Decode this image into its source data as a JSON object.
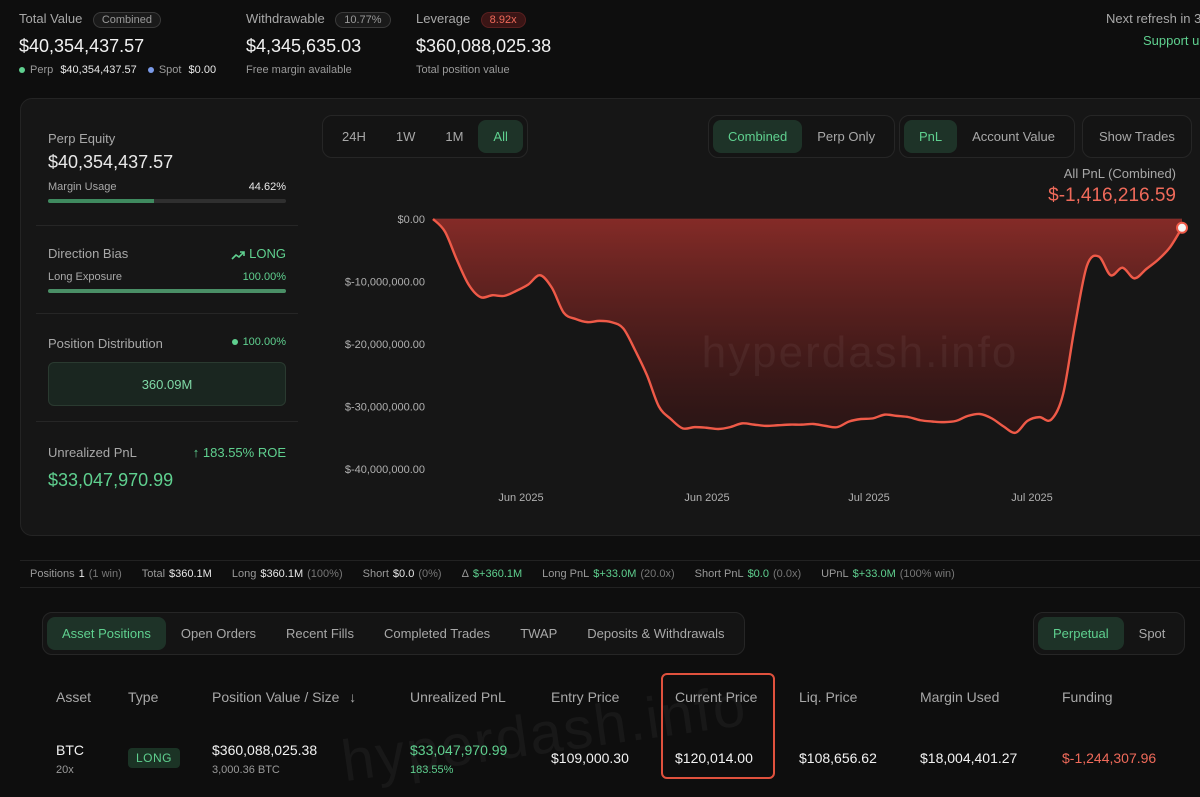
{
  "summary": {
    "total_value": {
      "label": "Total Value",
      "badge": "Combined",
      "value": "$40,354,437.57",
      "perp_label": "Perp",
      "perp_value": "$40,354,437.57",
      "spot_label": "Spot",
      "spot_value": "$0.00"
    },
    "withdrawable": {
      "label": "Withdrawable",
      "badge": "10.77%",
      "value": "$4,345,635.03",
      "sub": "Free margin available"
    },
    "leverage": {
      "label": "Leverage",
      "badge": "8.92x",
      "value": "$360,088,025.38",
      "sub": "Total position value"
    },
    "refresh": "Next refresh in 3",
    "support": "Support u"
  },
  "side": {
    "perp_equity": {
      "label": "Perp Equity",
      "value": "$40,354,437.57",
      "margin_label": "Margin Usage",
      "margin_value": "44.62%",
      "margin_fraction": 0.4462
    },
    "direction": {
      "label": "Direction Bias",
      "value": "LONG",
      "exposure_label": "Long Exposure",
      "exposure_value": "100.00%",
      "exposure_fraction": 1.0
    },
    "distribution": {
      "label": "Position Distribution",
      "value": "100.00%",
      "box_value": "360.09M"
    },
    "unrealized": {
      "label": "Unrealized PnL",
      "roe": "183.55% ROE",
      "value": "$33,047,970.99"
    }
  },
  "controls": {
    "ranges": [
      "24H",
      "1W",
      "1M",
      "All"
    ],
    "scope": [
      "Combined",
      "Perp Only"
    ],
    "metric": [
      "PnL",
      "Account Value"
    ],
    "show_trades": "Show Trades"
  },
  "chart_head": {
    "label": "All PnL (Combined)",
    "value": "$-1,416,216.59"
  },
  "watermark": "hyperdash.info",
  "chart_data": {
    "type": "area",
    "y_ticks": [
      "$0.00",
      "$-10,000,000.00",
      "$-20,000,000.00",
      "$-30,000,000.00",
      "$-40,000,000.00"
    ],
    "x_ticks": [
      "Jun 2025",
      "Jun 2025",
      "Jul 2025",
      "Jul 2025"
    ],
    "ylim": [
      -40000000,
      0
    ],
    "series_color": "#ef5a48",
    "values": [
      0,
      -2000000,
      -6500000,
      -10500000,
      -12500000,
      -12200000,
      -12300000,
      -11500000,
      -10500000,
      -9000000,
      -11000000,
      -15000000,
      -16000000,
      -16500000,
      -16300000,
      -16500000,
      -17500000,
      -21000000,
      -25000000,
      -30000000,
      -32000000,
      -33500000,
      -33300000,
      -33400000,
      -33600000,
      -33300000,
      -32700000,
      -32900000,
      -33100000,
      -33000000,
      -32900000,
      -32900000,
      -32800000,
      -33100000,
      -33300000,
      -32400000,
      -32000000,
      -31900000,
      -31300000,
      -31500000,
      -31700000,
      -32200000,
      -32400000,
      -32500000,
      -32300000,
      -31500000,
      -31200000,
      -31900000,
      -33200000,
      -34200000,
      -32300000,
      -31700000,
      -32100000,
      -28000000,
      -17000000,
      -7500000,
      -6000000,
      -9000000,
      -7800000,
      -9500000,
      -8000000,
      -6500000,
      -4500000,
      -1400000
    ]
  },
  "stats": {
    "positions_label": "Positions",
    "positions_value": "1",
    "positions_win": "(1 win)",
    "total_label": "Total",
    "total_value": "$360.1M",
    "long_label": "Long",
    "long_value": "$360.1M",
    "long_pct": "(100%)",
    "short_label": "Short",
    "short_value": "$0.0",
    "short_pct": "(0%)",
    "delta_label": "Δ",
    "delta_value": "$+360.1M",
    "longpnl_label": "Long PnL",
    "longpnl_value": "$+33.0M",
    "longpnl_x": "(20.0x)",
    "shortpnl_label": "Short PnL",
    "shortpnl_value": "$0.0",
    "shortpnl_x": "(0.0x)",
    "upnl_label": "UPnL",
    "upnl_value": "$+33.0M",
    "upnl_win": "(100% win)"
  },
  "tabs": [
    "Asset Positions",
    "Open Orders",
    "Recent Fills",
    "Completed Trades",
    "TWAP",
    "Deposits & Withdrawals"
  ],
  "market_tabs": [
    "Perpetual",
    "Spot"
  ],
  "table": {
    "headers": [
      "Asset",
      "Type",
      "Position Value / Size",
      "Unrealized PnL",
      "Entry Price",
      "Current Price",
      "Liq. Price",
      "Margin Used",
      "Funding"
    ],
    "sort_icon": "↓",
    "row": {
      "asset": "BTC",
      "leverage": "20x",
      "type": "LONG",
      "position_value": "$360,088,025.38",
      "size": "3,000.36 BTC",
      "pnl": "$33,047,970.99",
      "pnl_pct": "183.55%",
      "entry": "$109,000.30",
      "current": "$120,014.00",
      "liq": "$108,656.62",
      "margin": "$18,004,401.27",
      "funding": "$-1,244,307.96"
    }
  }
}
